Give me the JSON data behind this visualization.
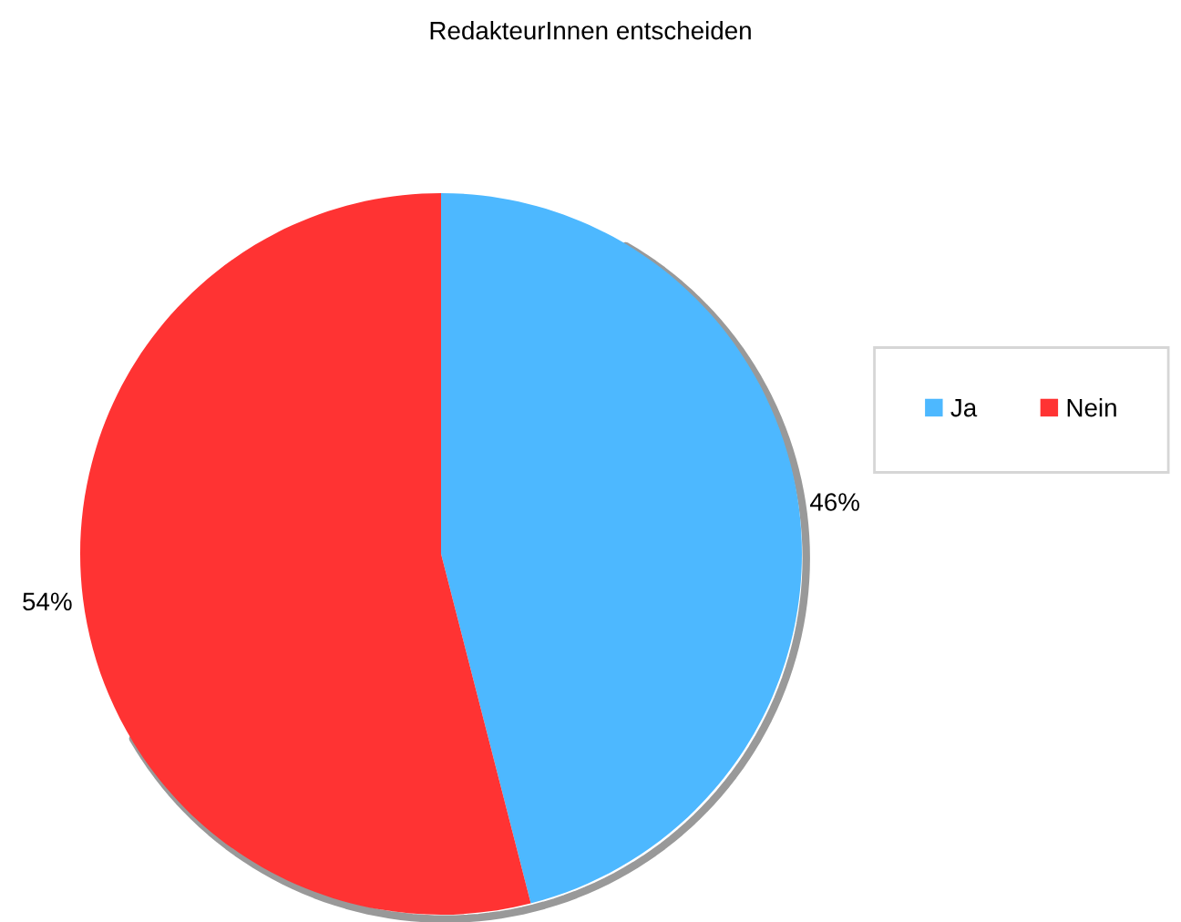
{
  "chart_data": {
    "type": "pie",
    "title": "RedakteurInnen entscheiden",
    "categories": [
      "Ja",
      "Nein"
    ],
    "values": [
      46,
      54
    ],
    "colors": [
      "#4db8ff",
      "#ff3333"
    ],
    "value_labels": [
      "46%",
      "54%"
    ],
    "legend": "right"
  }
}
